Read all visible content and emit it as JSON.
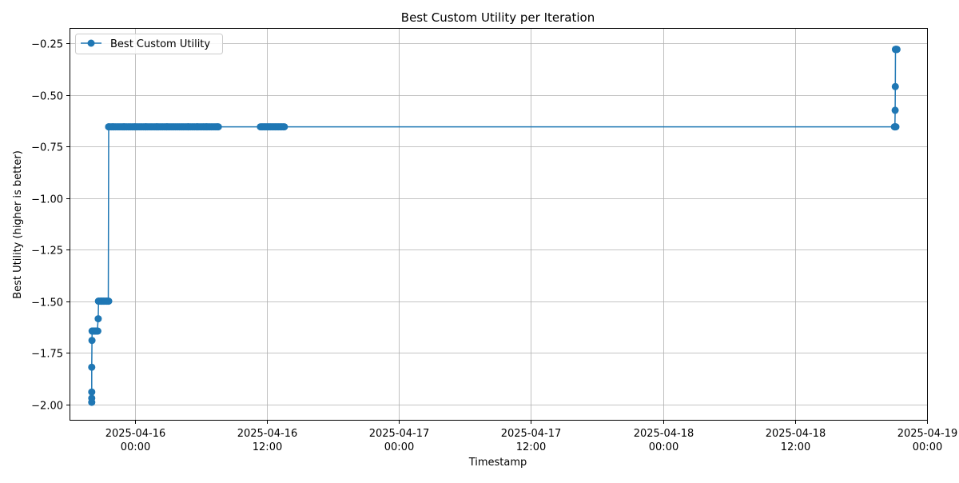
{
  "chart_data": {
    "type": "line",
    "title": "Best Custom Utility per Iteration",
    "xlabel": "Timestamp",
    "ylabel": "Best Utility (higher is better)",
    "x_axis_kind": "datetime",
    "xlim": [
      "2025-04-15T18:08",
      "2025-04-19T00:00"
    ],
    "ylim": [
      -2.075,
      -0.18
    ],
    "grid": true,
    "legend_position": "top-left",
    "x_ticks": [
      {
        "value": "2025-04-16T00:00",
        "label_line1": "2025-04-16",
        "label_line2": "00:00"
      },
      {
        "value": "2025-04-16T12:00",
        "label_line1": "2025-04-16",
        "label_line2": "12:00"
      },
      {
        "value": "2025-04-17T00:00",
        "label_line1": "2025-04-17",
        "label_line2": "00:00"
      },
      {
        "value": "2025-04-17T12:00",
        "label_line1": "2025-04-17",
        "label_line2": "12:00"
      },
      {
        "value": "2025-04-18T00:00",
        "label_line1": "2025-04-18",
        "label_line2": "00:00"
      },
      {
        "value": "2025-04-18T12:00",
        "label_line1": "2025-04-18",
        "label_line2": "12:00"
      },
      {
        "value": "2025-04-19T00:00",
        "label_line1": "2025-04-19",
        "label_line2": "00:00"
      }
    ],
    "y_ticks": [
      {
        "value": -0.25,
        "label": "−0.25"
      },
      {
        "value": -0.5,
        "label": "−0.50"
      },
      {
        "value": -0.75,
        "label": "−0.75"
      },
      {
        "value": -1.0,
        "label": "−1.00"
      },
      {
        "value": -1.25,
        "label": "−1.25"
      },
      {
        "value": -1.5,
        "label": "−1.50"
      },
      {
        "value": -1.75,
        "label": "−1.75"
      },
      {
        "value": -2.0,
        "label": "−2.00"
      }
    ],
    "series": [
      {
        "name": "Best Custom Utility",
        "color": "#1f77b4",
        "marker": "circle",
        "points": [
          {
            "x": "2025-04-15T20:05",
            "y": -1.99
          },
          {
            "x": "2025-04-15T20:05",
            "y": -1.97
          },
          {
            "x": "2025-04-15T20:05",
            "y": -1.94
          },
          {
            "x": "2025-04-15T20:05",
            "y": -1.82
          },
          {
            "x": "2025-04-15T20:06",
            "y": -1.69
          },
          {
            "x": "2025-04-15T20:07",
            "y": -1.645
          },
          {
            "x": "2025-04-15T20:15",
            "y": -1.645
          },
          {
            "x": "2025-04-15T20:25",
            "y": -1.645
          },
          {
            "x": "2025-04-15T20:35",
            "y": -1.645
          },
          {
            "x": "2025-04-15T20:40",
            "y": -1.585
          },
          {
            "x": "2025-04-15T20:42",
            "y": -1.5
          },
          {
            "x": "2025-04-15T20:55",
            "y": -1.5
          },
          {
            "x": "2025-04-15T21:10",
            "y": -1.5
          },
          {
            "x": "2025-04-15T21:25",
            "y": -1.5
          },
          {
            "x": "2025-04-15T21:35",
            "y": -1.5
          },
          {
            "x": "2025-04-15T21:37",
            "y": -0.655
          },
          {
            "x": "2025-04-15T22:00",
            "y": -0.655
          },
          {
            "x": "2025-04-15T23:00",
            "y": -0.655
          },
          {
            "x": "2025-04-16T00:00",
            "y": -0.655
          },
          {
            "x": "2025-04-16T01:00",
            "y": -0.655
          },
          {
            "x": "2025-04-16T02:00",
            "y": -0.655
          },
          {
            "x": "2025-04-16T02:55",
            "y": -0.655
          },
          {
            "x": "2025-04-16T04:50",
            "y": -0.655
          },
          {
            "x": "2025-04-16T05:40",
            "y": -0.655
          },
          {
            "x": "2025-04-16T06:30",
            "y": -0.655
          },
          {
            "x": "2025-04-16T07:30",
            "y": -0.655
          },
          {
            "x": "2025-04-18T21:05",
            "y": -0.655
          },
          {
            "x": "2025-04-18T21:06",
            "y": -0.575
          },
          {
            "x": "2025-04-18T21:07",
            "y": -0.46
          },
          {
            "x": "2025-04-18T21:08",
            "y": -0.28
          },
          {
            "x": "2025-04-18T21:15",
            "y": -0.28
          }
        ]
      }
    ]
  }
}
